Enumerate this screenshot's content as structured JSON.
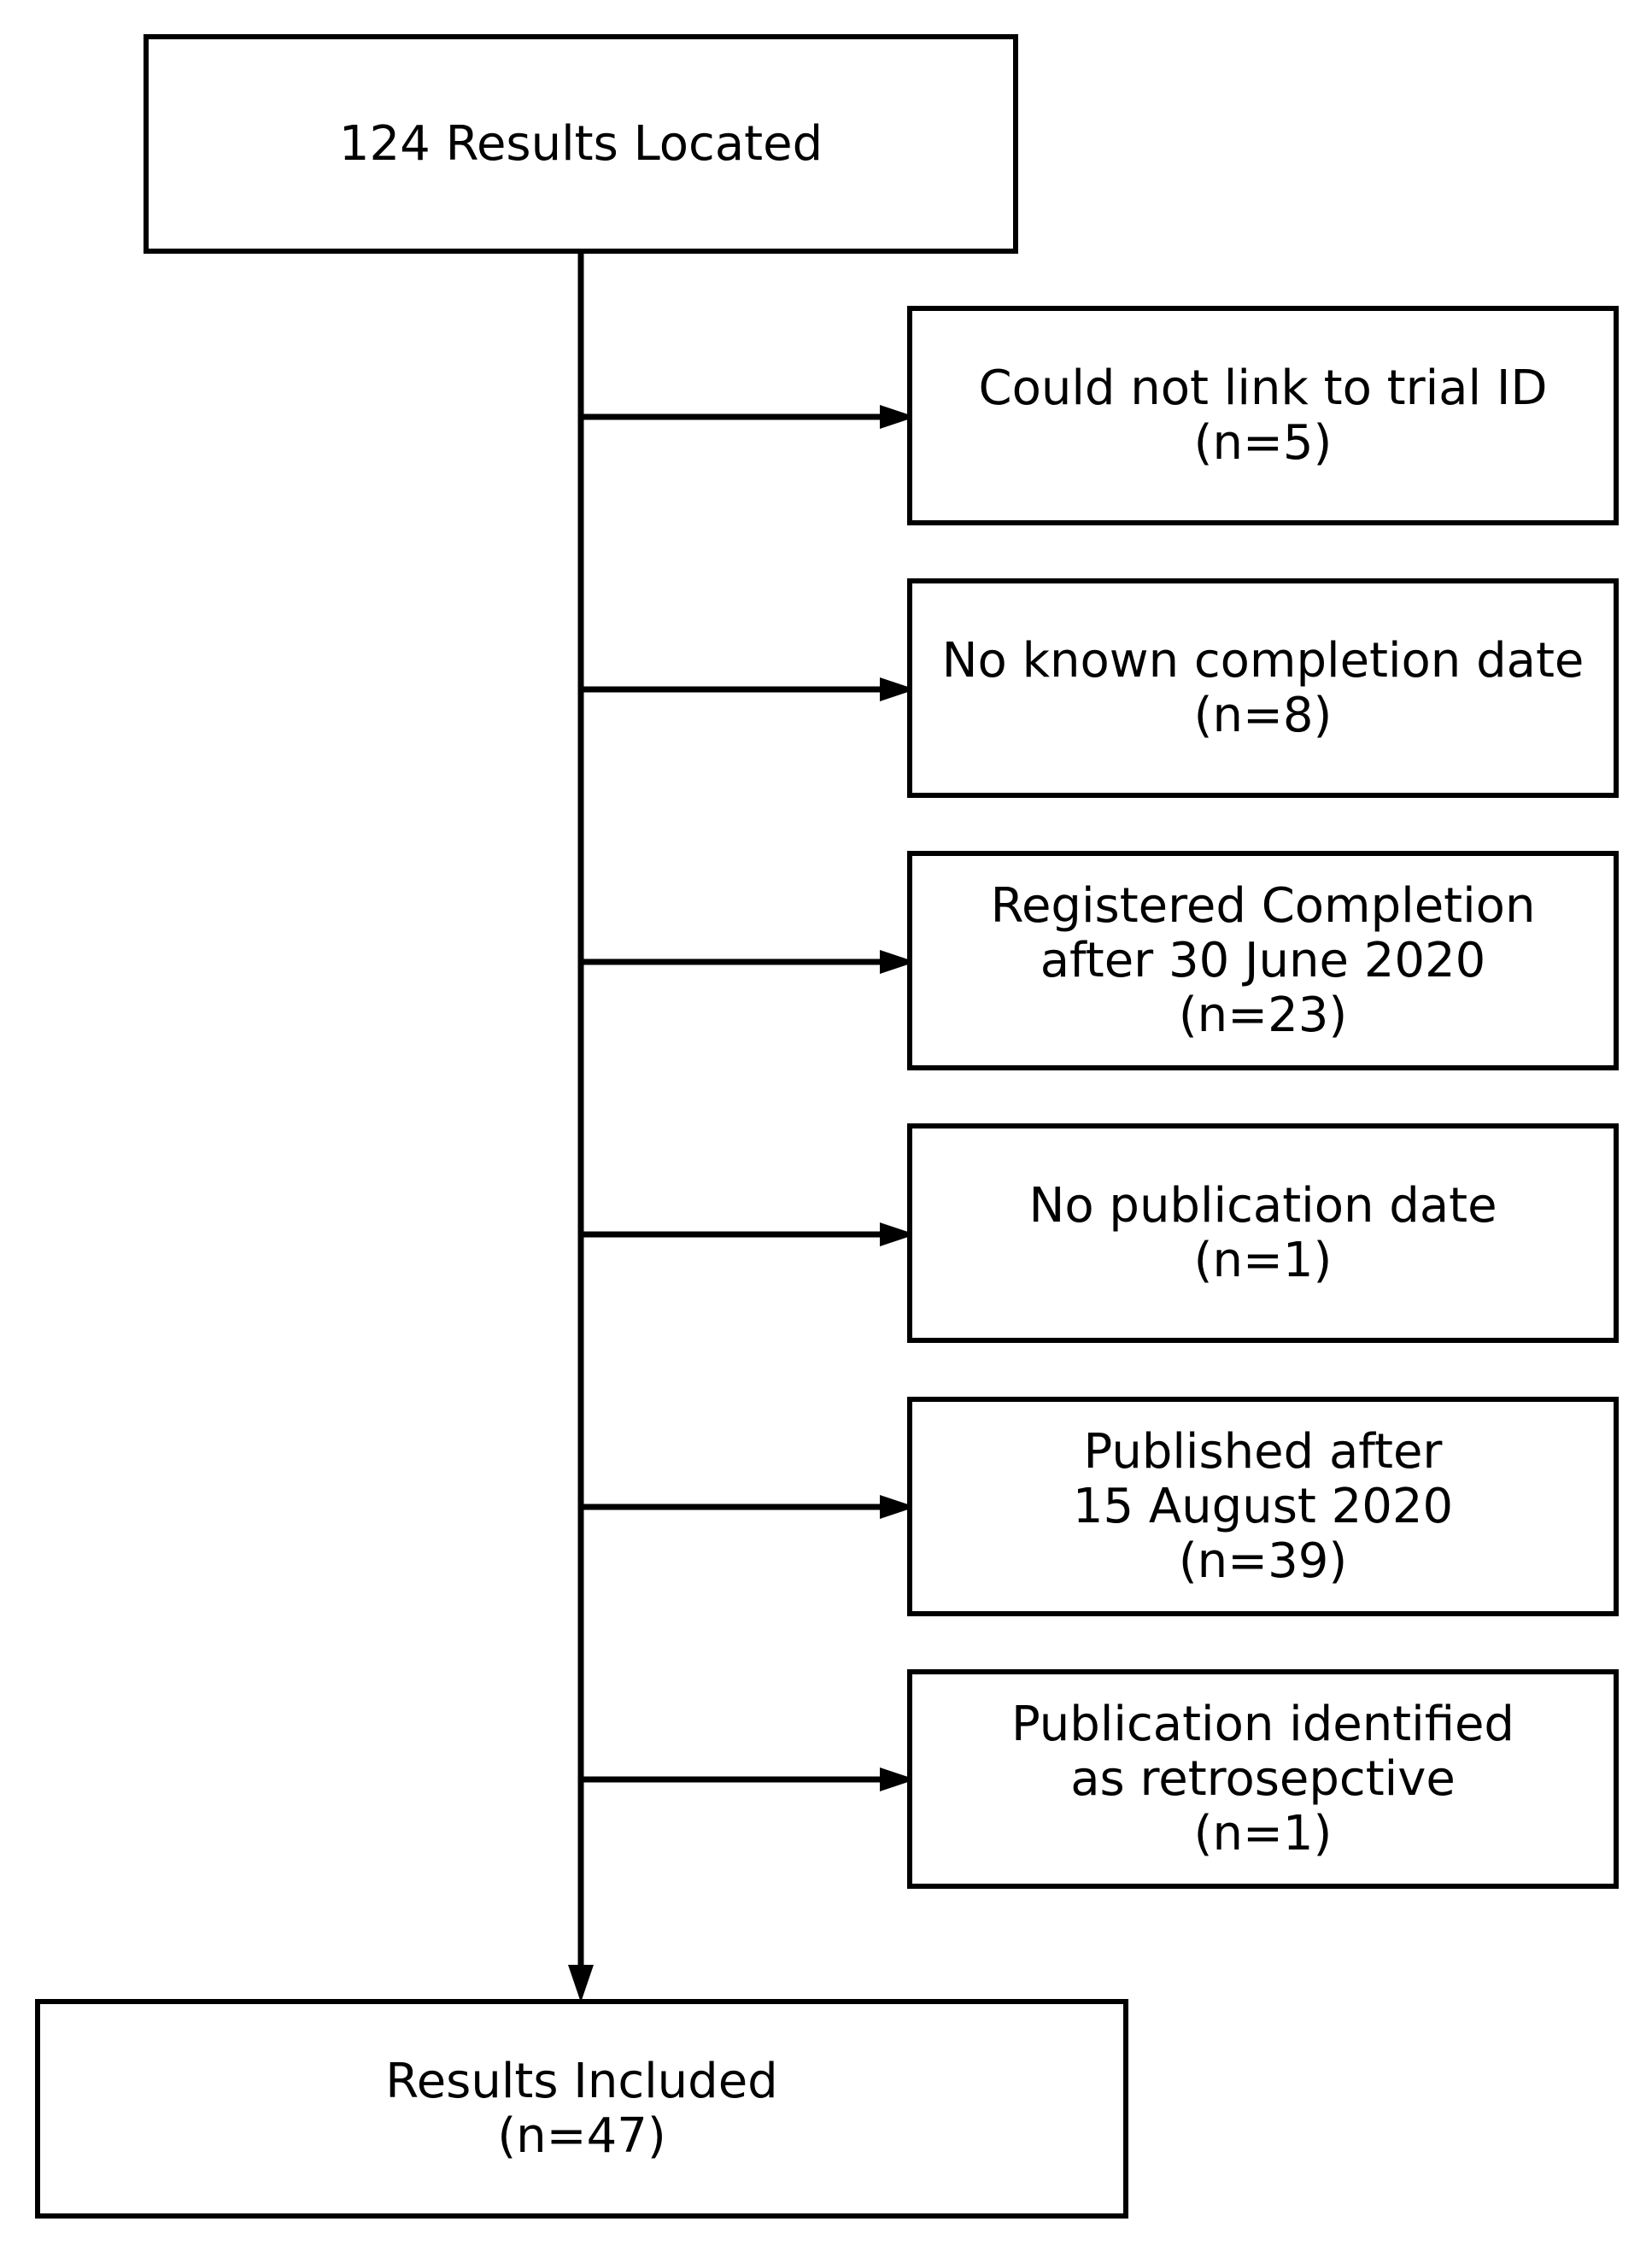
{
  "diagram": {
    "top_box": {
      "lines": [
        "124 Results Located"
      ]
    },
    "exclusions": [
      {
        "lines": [
          "Could not link to trial ID",
          "(n=5)"
        ]
      },
      {
        "lines": [
          "No known completion date",
          "(n=8)"
        ]
      },
      {
        "lines": [
          "Registered Completion",
          "after 30 June 2020",
          "(n=23)"
        ]
      },
      {
        "lines": [
          "No publication date",
          "(n=1)"
        ]
      },
      {
        "lines": [
          "Published after",
          "15 August 2020",
          "(n=39)"
        ]
      },
      {
        "lines": [
          "Publication identified",
          "as retrosepctive",
          "(n=1)"
        ]
      }
    ],
    "bottom_box": {
      "lines": [
        "Results Included",
        "(n=47)"
      ]
    },
    "colors": {
      "stroke": "#000000",
      "background": "#ffffff"
    }
  }
}
